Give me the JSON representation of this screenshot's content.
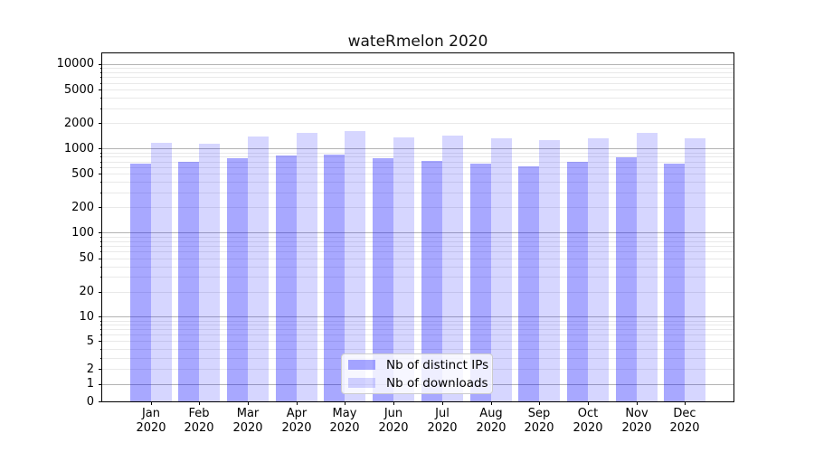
{
  "title": "wateRmelon 2020",
  "legend": {
    "position": "lower center",
    "items": [
      {
        "label": "Nb of distinct IPs",
        "color": "rgba(0,0,255,0.34)"
      },
      {
        "label": "Nb of downloads",
        "color": "rgba(0,0,255,0.16)"
      }
    ]
  },
  "chart_data": {
    "type": "bar",
    "title": "wateRmelon 2020",
    "categories": [
      "Jan 2020",
      "Feb 2020",
      "Mar 2020",
      "Apr 2020",
      "May 2020",
      "Jun 2020",
      "Jul 2020",
      "Aug 2020",
      "Sep 2020",
      "Oct 2020",
      "Nov 2020",
      "Dec 2020"
    ],
    "series": [
      {
        "name": "Nb of distinct IPs",
        "color": "rgba(0,0,255,0.34)",
        "values": [
          660,
          690,
          760,
          820,
          840,
          760,
          710,
          660,
          610,
          690,
          780,
          660
        ]
      },
      {
        "name": "Nb of downloads",
        "color": "rgba(0,0,255,0.16)",
        "values": [
          1160,
          1130,
          1380,
          1520,
          1600,
          1350,
          1420,
          1310,
          1250,
          1310,
          1520,
          1310
        ]
      }
    ],
    "xlabel": "",
    "ylabel": "",
    "y_axis": {
      "scale": "pseudo-log",
      "tick_values": [
        0,
        1,
        2,
        5,
        10,
        20,
        50,
        100,
        200,
        500,
        1000,
        2000,
        5000,
        10000
      ],
      "ylim": [
        0,
        13400
      ]
    },
    "grid": {
      "which": "both",
      "axis": "y",
      "major_color": "#b3b3b3",
      "minor_color": "#e9e9e9"
    },
    "legend_position": "lower center"
  }
}
